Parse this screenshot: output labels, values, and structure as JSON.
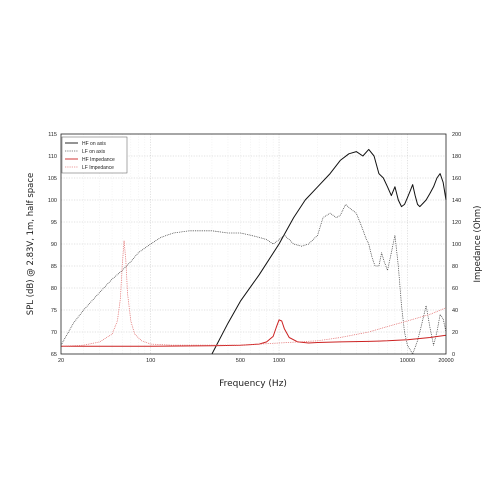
{
  "chart_data": {
    "type": "line",
    "xlabel": "Frequency (Hz)",
    "ylabel": "SPL (dB) @ 2.83V, 1m, half space",
    "y2label": "Impedance (Ohm)",
    "x_scale": "log",
    "xlim": [
      20,
      20000
    ],
    "ylim": [
      65,
      115
    ],
    "y2lim": [
      0,
      200
    ],
    "x_ticks": [
      20,
      100,
      500,
      1000,
      10000,
      20000
    ],
    "y_ticks": [
      65,
      70,
      75,
      80,
      85,
      90,
      95,
      100,
      105,
      110,
      115
    ],
    "y2_ticks": [
      0,
      20,
      40,
      60,
      80,
      100,
      120,
      140,
      160,
      180,
      200
    ],
    "grid": true,
    "legend_position": "top-left",
    "series": [
      {
        "name": "HF on axis",
        "axis": "left",
        "color": "#111111",
        "style": "solid",
        "points": [
          [
            300,
            65
          ],
          [
            400,
            72
          ],
          [
            500,
            77
          ],
          [
            700,
            83
          ],
          [
            1000,
            90
          ],
          [
            1300,
            96
          ],
          [
            1600,
            100
          ],
          [
            2000,
            103
          ],
          [
            2500,
            106
          ],
          [
            3000,
            109
          ],
          [
            3500,
            110.5
          ],
          [
            4000,
            111
          ],
          [
            4500,
            110
          ],
          [
            5000,
            111.5
          ],
          [
            5500,
            110
          ],
          [
            6000,
            106
          ],
          [
            6500,
            105
          ],
          [
            7000,
            103
          ],
          [
            7500,
            101
          ],
          [
            8000,
            103
          ],
          [
            8500,
            100
          ],
          [
            9000,
            98.5
          ],
          [
            9500,
            99
          ],
          [
            10000,
            100.5
          ],
          [
            10500,
            102
          ],
          [
            11000,
            103.5
          ],
          [
            11500,
            101
          ],
          [
            12000,
            99
          ],
          [
            12500,
            98.5
          ],
          [
            13000,
            99
          ],
          [
            14000,
            100
          ],
          [
            15000,
            101.5
          ],
          [
            16000,
            103
          ],
          [
            17000,
            105
          ],
          [
            18000,
            106
          ],
          [
            19000,
            104
          ],
          [
            20000,
            100
          ]
        ]
      },
      {
        "name": "LF on axis",
        "axis": "left",
        "color": "#333333",
        "style": "dotted",
        "points": [
          [
            20,
            67
          ],
          [
            25,
            72
          ],
          [
            30,
            75
          ],
          [
            40,
            79
          ],
          [
            50,
            82
          ],
          [
            60,
            84
          ],
          [
            70,
            86
          ],
          [
            80,
            88
          ],
          [
            100,
            90
          ],
          [
            120,
            91.5
          ],
          [
            150,
            92.5
          ],
          [
            200,
            93
          ],
          [
            300,
            93
          ],
          [
            400,
            92.5
          ],
          [
            500,
            92.5
          ],
          [
            600,
            92
          ],
          [
            700,
            91.5
          ],
          [
            800,
            91
          ],
          [
            900,
            90
          ],
          [
            1000,
            91
          ],
          [
            1100,
            92
          ],
          [
            1200,
            91
          ],
          [
            1300,
            90
          ],
          [
            1500,
            89.5
          ],
          [
            1700,
            90
          ],
          [
            2000,
            92
          ],
          [
            2200,
            96
          ],
          [
            2500,
            97
          ],
          [
            2800,
            96
          ],
          [
            3000,
            96.5
          ],
          [
            3300,
            99
          ],
          [
            3600,
            98
          ],
          [
            4000,
            97
          ],
          [
            4400,
            94
          ],
          [
            4800,
            91
          ],
          [
            5000,
            90
          ],
          [
            5300,
            87
          ],
          [
            5600,
            85
          ],
          [
            6000,
            85
          ],
          [
            6300,
            88
          ],
          [
            6600,
            86
          ],
          [
            7000,
            84
          ],
          [
            7500,
            88
          ],
          [
            8000,
            92
          ],
          [
            8500,
            85
          ],
          [
            9000,
            76
          ],
          [
            9500,
            70
          ],
          [
            10000,
            67
          ],
          [
            11000,
            65
          ],
          [
            12000,
            68
          ],
          [
            13000,
            72
          ],
          [
            14000,
            76
          ],
          [
            15000,
            71
          ],
          [
            16000,
            67
          ],
          [
            17000,
            70
          ],
          [
            18000,
            74
          ],
          [
            19000,
            73
          ],
          [
            20000,
            70
          ]
        ]
      },
      {
        "name": "HF Impedance",
        "axis": "right",
        "color": "#cc2222",
        "style": "solid",
        "points": [
          [
            20,
            7
          ],
          [
            100,
            7
          ],
          [
            300,
            7.5
          ],
          [
            500,
            8
          ],
          [
            700,
            9
          ],
          [
            800,
            11
          ],
          [
            900,
            16
          ],
          [
            950,
            24
          ],
          [
            1000,
            31
          ],
          [
            1050,
            30
          ],
          [
            1100,
            23
          ],
          [
            1200,
            15
          ],
          [
            1400,
            11
          ],
          [
            1700,
            10
          ],
          [
            2000,
            10.5
          ],
          [
            3000,
            11
          ],
          [
            5000,
            11.5
          ],
          [
            7000,
            12
          ],
          [
            10000,
            13
          ],
          [
            15000,
            15
          ],
          [
            20000,
            17
          ]
        ]
      },
      {
        "name": "LF Impedance",
        "axis": "right",
        "color": "#e06060",
        "style": "dotted",
        "points": [
          [
            20,
            7
          ],
          [
            30,
            8
          ],
          [
            40,
            11
          ],
          [
            50,
            18
          ],
          [
            55,
            30
          ],
          [
            58,
            50
          ],
          [
            60,
            80
          ],
          [
            62,
            103
          ],
          [
            64,
            85
          ],
          [
            66,
            55
          ],
          [
            70,
            30
          ],
          [
            75,
            18
          ],
          [
            85,
            12
          ],
          [
            100,
            9
          ],
          [
            150,
            8
          ],
          [
            300,
            8
          ],
          [
            500,
            8
          ],
          [
            700,
            9
          ],
          [
            1000,
            10
          ],
          [
            2000,
            12
          ],
          [
            3000,
            15
          ],
          [
            5000,
            20
          ],
          [
            7000,
            25
          ],
          [
            10000,
            30
          ],
          [
            15000,
            36
          ],
          [
            20000,
            42
          ]
        ]
      }
    ]
  }
}
